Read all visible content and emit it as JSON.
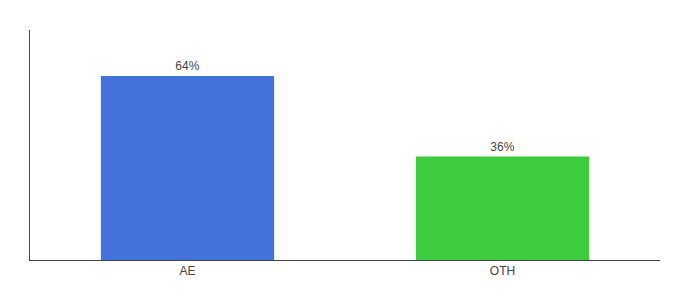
{
  "chart_data": {
    "type": "bar",
    "categories": [
      "AE",
      "OTH"
    ],
    "values": [
      64,
      36
    ],
    "value_labels": [
      "64%",
      "36%"
    ],
    "data_labels": true,
    "colors": [
      "#4472db",
      "#3dcc3d"
    ],
    "ylim": [
      0,
      80
    ],
    "grid": false,
    "tick_labels": "x"
  }
}
